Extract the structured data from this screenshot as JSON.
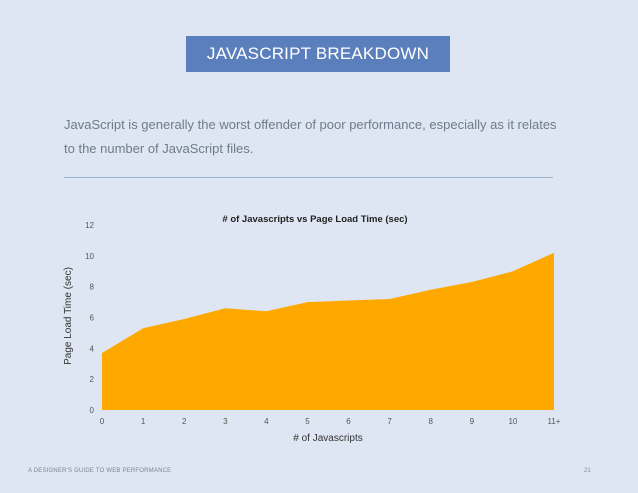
{
  "header": {
    "title": "JAVASCRIPT BREAKDOWN"
  },
  "intro": {
    "text": "JavaScript is generally the worst offender of poor performance, especially as it relates to the number of JavaScript files."
  },
  "footer": {
    "left": "A DESIGNER'S GUIDE TO WEB PERFORMANCE",
    "page_number": "21"
  },
  "colors": {
    "banner": "#5b7fbd",
    "area_fill": "#ffa800",
    "background": "#dde6f2"
  },
  "chart_data": {
    "type": "area",
    "title": "# of Javascripts vs Page Load Time (sec)",
    "xlabel": "# of Javascripts",
    "ylabel": "Page Load Time (sec)",
    "categories": [
      "0",
      "1",
      "2",
      "3",
      "4",
      "5",
      "6",
      "7",
      "8",
      "9",
      "10",
      "11+"
    ],
    "values": [
      3.7,
      5.3,
      5.9,
      6.6,
      6.4,
      7.0,
      7.1,
      7.2,
      7.8,
      8.3,
      9.0,
      10.2
    ],
    "yticks": [
      "0",
      "2",
      "4",
      "6",
      "8",
      "10",
      "12"
    ],
    "ylim": [
      0,
      12
    ],
    "grid": false,
    "legend": "none"
  }
}
